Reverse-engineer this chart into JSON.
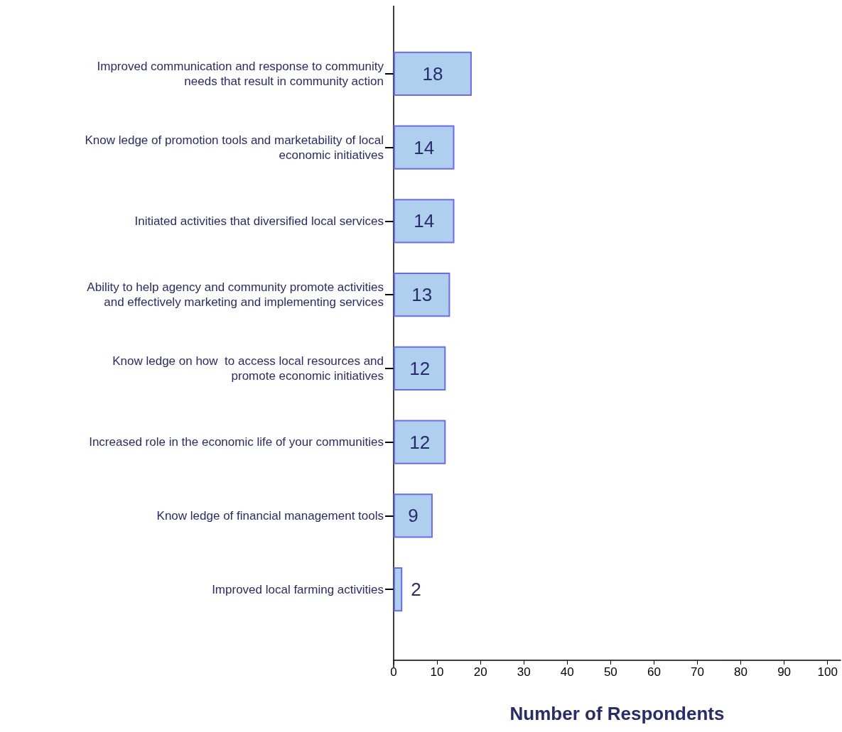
{
  "chart_data": {
    "type": "bar",
    "orientation": "horizontal",
    "xlabel": "Number of Respondents",
    "categories": [
      "Improved communication and response to community\nneeds that result in community action",
      "Know ledge of promotion tools and marketability of local\neconomic initiatives",
      "Initiated activities that diversified local services",
      "Ability to help agency and community promote activities\nand effectively marketing and implementing services",
      "Know ledge on how  to access local resources and\npromote economic initiatives",
      "Increased role in the economic life of your communities",
      "Know ledge of financial management tools",
      "Improved local farming activities"
    ],
    "values": [
      18,
      14,
      14,
      13,
      12,
      12,
      9,
      2
    ],
    "color": "#aed0ee",
    "xlim": [
      0,
      103
    ],
    "xticks": [
      0,
      10,
      20,
      30,
      40,
      50,
      60,
      70,
      80,
      90,
      100
    ],
    "data_labels": true,
    "grid": false
  }
}
